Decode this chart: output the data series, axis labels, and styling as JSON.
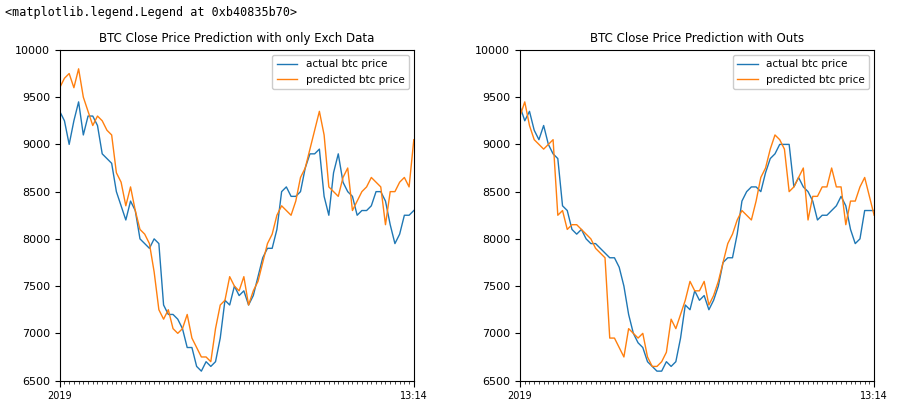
{
  "title1": "BTC Close Price Prediction with only Exch Data",
  "title2": "BTC Close Price Prediction with Outs",
  "legend_label1": "actual btc price",
  "legend_label2": "predicted btc price",
  "color_actual": "#1f77b4",
  "color_predicted": "#ff7f0e",
  "ylim": [
    6500,
    10000
  ],
  "suptitle": "<matplotlib.legend.Legend at 0xb40835b70>",
  "actual1": [
    9350,
    9250,
    9000,
    9250,
    9450,
    9100,
    9300,
    9300,
    9200,
    8900,
    8850,
    8800,
    8500,
    8350,
    8200,
    8400,
    8300,
    8000,
    7950,
    7900,
    8000,
    7950,
    7300,
    7200,
    7200,
    7150,
    7050,
    6850,
    6850,
    6650,
    6600,
    6700,
    6650,
    6700,
    6950,
    7350,
    7300,
    7500,
    7400,
    7450,
    7300,
    7400,
    7600,
    7800,
    7900,
    7900,
    8100,
    8500,
    8550,
    8450,
    8450,
    8500,
    8750,
    8900,
    8900,
    8950,
    8450,
    8250,
    8700,
    8900,
    8600,
    8500,
    8450,
    8250,
    8300,
    8300,
    8350,
    8500,
    8500,
    8400,
    8150,
    7950,
    8050,
    8250,
    8250,
    8300
  ],
  "predicted1": [
    9600,
    9700,
    9750,
    9600,
    9800,
    9500,
    9350,
    9200,
    9300,
    9250,
    9150,
    9100,
    8700,
    8600,
    8350,
    8550,
    8300,
    8100,
    8050,
    7950,
    7650,
    7250,
    7150,
    7250,
    7050,
    7000,
    7050,
    7200,
    6950,
    6850,
    6750,
    6750,
    6700,
    7050,
    7300,
    7350,
    7600,
    7500,
    7450,
    7600,
    7300,
    7450,
    7550,
    7750,
    7950,
    8050,
    8250,
    8350,
    8300,
    8250,
    8400,
    8650,
    8750,
    8950,
    9150,
    9350,
    9100,
    8550,
    8500,
    8450,
    8650,
    8750,
    8300,
    8400,
    8500,
    8550,
    8650,
    8600,
    8550,
    8150,
    8500,
    8500,
    8600,
    8650,
    8550,
    9050
  ],
  "actual2": [
    9400,
    9250,
    9350,
    9150,
    9050,
    9200,
    9000,
    8900,
    8850,
    8350,
    8300,
    8100,
    8050,
    8100,
    8000,
    7950,
    7950,
    7900,
    7850,
    7800,
    7800,
    7700,
    7500,
    7200,
    7000,
    6900,
    6850,
    6700,
    6650,
    6600,
    6600,
    6700,
    6650,
    6700,
    6950,
    7300,
    7250,
    7450,
    7350,
    7400,
    7250,
    7350,
    7500,
    7750,
    7800,
    7800,
    8050,
    8400,
    8500,
    8550,
    8550,
    8500,
    8700,
    8850,
    8900,
    9000,
    9000,
    9000,
    8550,
    8650,
    8550,
    8500,
    8400,
    8200,
    8250,
    8250,
    8300,
    8350,
    8450,
    8350,
    8100,
    7950,
    8000,
    8300,
    8300,
    8300
  ],
  "predicted2": [
    9300,
    9450,
    9200,
    9050,
    9000,
    8950,
    9000,
    9050,
    8250,
    8300,
    8100,
    8150,
    8150,
    8100,
    8050,
    8000,
    7900,
    7850,
    7800,
    6950,
    6950,
    6850,
    6750,
    7050,
    7000,
    6950,
    7000,
    6750,
    6650,
    6650,
    6700,
    6800,
    7150,
    7050,
    7200,
    7350,
    7550,
    7450,
    7450,
    7550,
    7300,
    7400,
    7550,
    7750,
    7950,
    8050,
    8200,
    8300,
    8250,
    8200,
    8400,
    8650,
    8750,
    8950,
    9100,
    9050,
    8950,
    8500,
    8550,
    8650,
    8750,
    8200,
    8450,
    8450,
    8550,
    8550,
    8750,
    8550,
    8550,
    8150,
    8400,
    8400,
    8550,
    8650,
    8450,
    8250
  ]
}
